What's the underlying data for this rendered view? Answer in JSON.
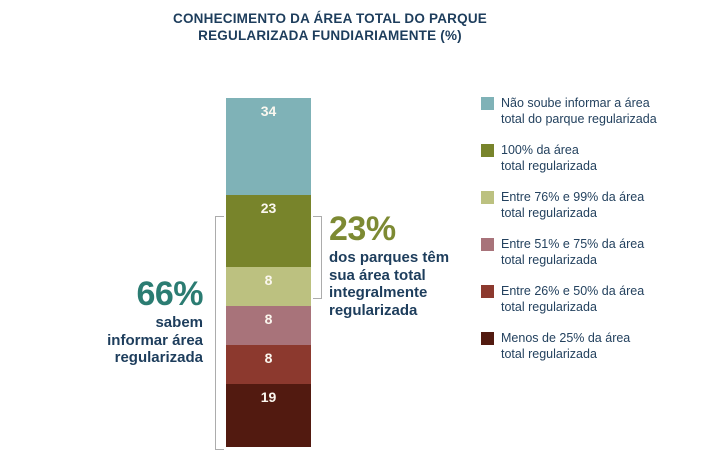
{
  "title": {
    "line1": "CONHECIMENTO DA ÁREA TOTAL DO PARQUE",
    "line2": "REGULARIZADA FUNDIARIAMENTE (%)"
  },
  "colors": {
    "title_text": "#1d3d5c",
    "legend_text": "#24425f",
    "bar_value_label": "#fbf7ef",
    "bracket": "#acacac",
    "annotation_66_accent": "#2b7c72",
    "annotation_23_accent": "#7d8a33"
  },
  "chart_data": {
    "type": "bar",
    "subtype": "single-stacked-column",
    "title": "CONHECIMENTO DA ÁREA TOTAL DO PARQUE REGULARIZADA FUNDIARIAMENTE (%)",
    "unit": "%",
    "ylim": [
      0,
      100
    ],
    "total": 100,
    "grid": false,
    "legend_position": "right",
    "segments": [
      {
        "value": 34,
        "color": "#7fb2b7",
        "label": "Não soube informar a área total do parque regularizada",
        "legend_lines": [
          "Não soube informar a área",
          "total do parque regularizada"
        ]
      },
      {
        "value": 23,
        "color": "#78842b",
        "label": "100% da área total regularizada",
        "legend_lines": [
          "100% da área",
          "total regularizada"
        ]
      },
      {
        "value": 8,
        "color": "#bcc180",
        "label": "Entre 76% e 99% da área total regularizada",
        "legend_lines": [
          "Entre 76% e 99% da área",
          "total regularizada"
        ]
      },
      {
        "value": 8,
        "color": "#a8737a",
        "label": "Entre 51% e 75% da área total regularizada",
        "legend_lines": [
          "Entre 51% e 75% da área",
          "total regularizada"
        ]
      },
      {
        "value": 8,
        "color": "#8c392e",
        "label": "Entre 26% e 50% da área total regularizada",
        "legend_lines": [
          "Entre 26% e 50% da área",
          "total regularizada"
        ]
      },
      {
        "value": 19,
        "color": "#521a10",
        "label": "Menos de 25% da área total regularizada",
        "legend_lines": [
          "Menos de 25% da área",
          "total regularizada"
        ]
      }
    ],
    "callouts": [
      {
        "value_label": "66%",
        "description": "sabem informar área regularizada",
        "sum": 66,
        "covers_values": [
          23,
          8,
          8,
          8,
          19
        ],
        "side": "left"
      },
      {
        "value_label": "23%",
        "description": "dos parques têm sua área total integralmente regularizada",
        "sum": 23,
        "covers_values": [
          23
        ],
        "side": "right"
      }
    ]
  },
  "annotation_left": {
    "big": "66%",
    "lines": [
      "sabem",
      "informar área",
      "regularizada"
    ]
  },
  "annotation_right": {
    "big": "23%",
    "lines": [
      "dos parques têm",
      "sua área total",
      "integralmente",
      "regularizada"
    ]
  }
}
